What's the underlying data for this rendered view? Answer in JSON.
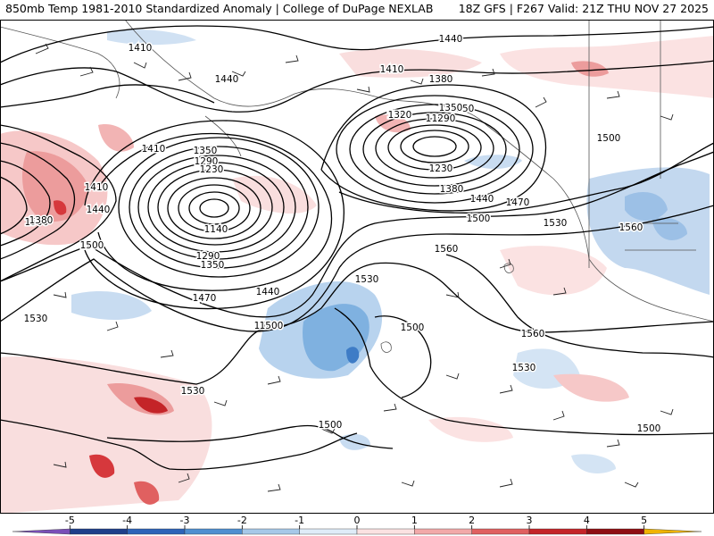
{
  "header": {
    "left_title": "850mb Temp 1981-2010 Standardized Anomaly | College of DuPage NEXLAB",
    "right_title": "18Z GFS | F267 Valid: 21Z THU NOV 27 2025"
  },
  "contours": {
    "labels": [
      "1440",
      "1410",
      "1440",
      "1410",
      "1380",
      "1350",
      "1290",
      "1230",
      "1320",
      "1290",
      "1350",
      "1230",
      "1380",
      "1440",
      "1470",
      "1500",
      "1530",
      "1560",
      "1560",
      "1500",
      "1530",
      "1500",
      "1530",
      "1500",
      "1500",
      "1410",
      "1350",
      "1290",
      "1230",
      "1140",
      "1290",
      "1350",
      "1440",
      "1470",
      "1500",
      "1500",
      "1410",
      "1380",
      "1440",
      "1530",
      "1500",
      "1530",
      "1470",
      "1500",
      "1560"
    ]
  },
  "colorbar": {
    "ticks": [
      "-5",
      "-4",
      "-3",
      "-2",
      "-1",
      "0",
      "1",
      "2",
      "3",
      "4",
      "5"
    ],
    "colors": [
      "#7a4fb8",
      "#1e3f8a",
      "#2d63b8",
      "#4f8fd0",
      "#a6c8e8",
      "#dfecf8",
      "#fbe2e2",
      "#f2a9a9",
      "#e06060",
      "#c42428",
      "#8e0d12",
      "#f0b400"
    ]
  }
}
